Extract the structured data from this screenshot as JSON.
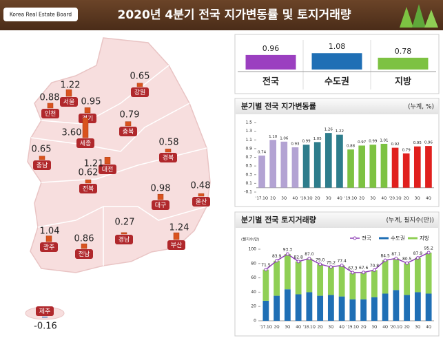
{
  "header": {
    "logo": "Korea Real Estate Board",
    "title": "2020년 4분기 전국 지가변동률 및 토지거래량"
  },
  "map": {
    "regions": [
      "서울",
      "인천",
      "경기",
      "강원",
      "충북",
      "세종",
      "충남",
      "대전",
      "경북",
      "전북",
      "대구",
      "울산",
      "광주",
      "전남",
      "경남",
      "부산",
      "제주"
    ],
    "values": [
      1.22,
      0.88,
      0.95,
      0.65,
      0.79,
      3.6,
      0.65,
      1.21,
      0.58,
      0.62,
      0.98,
      0.48,
      1.04,
      0.86,
      0.27,
      1.24,
      -0.16
    ],
    "value_labels": [
      "1.22",
      "0.88",
      "0.95",
      "0.65",
      "0.79",
      "3.60",
      "0.65",
      "1.21",
      "0.58",
      "0.62",
      "0.98",
      "0.48",
      "1.04",
      "0.86",
      "0.27",
      "1.24",
      "-0.16"
    ],
    "bar_color": "#d9531e",
    "tag_color": "#b0282c"
  },
  "chart_data": [
    {
      "type": "strip",
      "categories": [
        "전국",
        "수도권",
        "지방"
      ],
      "values": [
        0.96,
        1.08,
        0.78
      ],
      "value_labels": [
        "0.96",
        "1.08",
        "0.78"
      ],
      "colors": [
        "#9b3fc0",
        "#1f6fb5",
        "#7dc242"
      ]
    },
    {
      "type": "bar",
      "title": "분기별 전국 지가변동률",
      "unit": "(누계, %)",
      "categories": [
        "'17.1Q",
        "2Q",
        "3Q",
        "4Q",
        "'18.1Q",
        "2Q",
        "3Q",
        "4Q",
        "'19.1Q",
        "2Q",
        "3Q",
        "4Q",
        "'20.1Q",
        "2Q",
        "3Q",
        "4Q"
      ],
      "values": [
        0.74,
        1.1,
        1.06,
        0.93,
        0.99,
        1.05,
        1.26,
        1.22,
        0.88,
        0.97,
        0.99,
        1.01,
        0.92,
        0.79,
        0.95,
        0.96
      ],
      "value_labels": [
        "0.74",
        "1.10",
        "1.06",
        "0.93",
        "0.99",
        "1.05",
        "1.26",
        "1.22",
        "0.88",
        "0.97",
        "0.99",
        "1.01",
        "0.92",
        "0.79",
        "0.95",
        "0.96"
      ],
      "colors": [
        "#b3a3d3",
        "#b3a3d3",
        "#b3a3d3",
        "#b3a3d3",
        "#2e7d8c",
        "#2e7d8c",
        "#2e7d8c",
        "#2e7d8c",
        "#7dc242",
        "#7dc242",
        "#7dc242",
        "#7dc242",
        "#e0201e",
        "#e0201e",
        "#e0201e",
        "#e0201e"
      ],
      "ylim": [
        -0.1,
        1.5
      ],
      "yticks": [
        -0.1,
        0.1,
        0.3,
        0.5,
        0.7,
        0.9,
        1.1,
        1.3,
        1.5
      ]
    },
    {
      "type": "combo",
      "title": "분기별 전국 토지거래량",
      "unit": "(누계, 필지수(만))",
      "y_label": "(필지수/만)",
      "categories": [
        "'17.1Q",
        "2Q",
        "3Q",
        "4Q",
        "'18.1Q",
        "2Q",
        "3Q",
        "4Q",
        "'19.1Q",
        "2Q",
        "3Q",
        "4Q",
        "'20.1Q",
        "2Q",
        "3Q",
        "4Q"
      ],
      "series": [
        {
          "name": "전국",
          "color": "#8e3fb5",
          "type": "line",
          "values": [
            71.5,
            83.9,
            93.3,
            82.8,
            87,
            79,
            75.2,
            77.4,
            67.3,
            67.6,
            70.8,
            84.5,
            87.1,
            80.5,
            87.9,
            95.2
          ],
          "value_labels": [
            "71.5",
            "83.9",
            "93.3",
            "82.8",
            "87.0",
            "79.0",
            "75.2",
            "77.4",
            "67.3",
            "67.6",
            "70.8",
            "84.5",
            "87.1",
            "80.5",
            "87.9",
            "95.2"
          ]
        },
        {
          "name": "수도권",
          "color": "#1f6fb5",
          "type": "bar",
          "values": [
            28,
            35,
            44,
            37,
            40,
            35,
            36,
            34,
            30,
            30,
            33,
            38,
            43,
            36,
            40,
            38
          ]
        },
        {
          "name": "지방",
          "color": "#8fcf55",
          "type": "bar",
          "values": [
            43.5,
            48.9,
            49.3,
            45.8,
            47,
            44,
            39.2,
            43.4,
            37.3,
            37.6,
            37.8,
            46.5,
            44.1,
            44.5,
            47.9,
            57.2
          ]
        }
      ],
      "stacked": true,
      "legend": "top-right",
      "ylim": [
        0,
        100
      ],
      "yticks": [
        0,
        20,
        40,
        60,
        80,
        100
      ]
    }
  ]
}
